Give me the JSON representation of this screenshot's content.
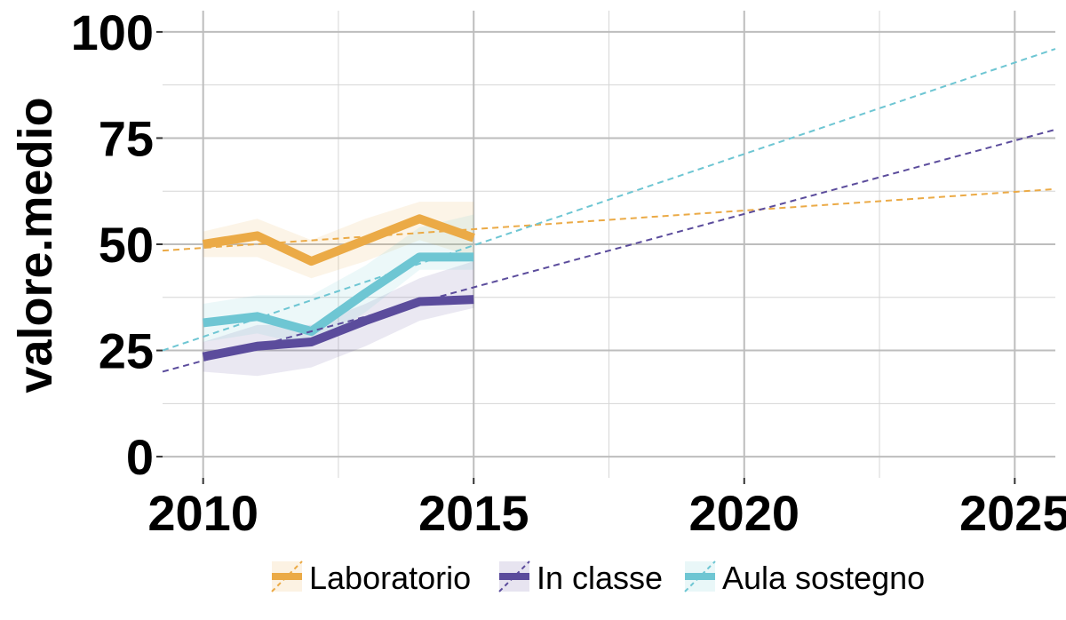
{
  "chart_data": {
    "type": "line",
    "title": "",
    "xlabel": "",
    "ylabel": "valore.medio",
    "xlim": [
      2009.25,
      2025.75
    ],
    "ylim": [
      -5,
      105
    ],
    "x_ticks": [
      2010,
      2015,
      2020,
      2025
    ],
    "y_ticks": [
      0,
      25,
      50,
      75,
      100
    ],
    "grid": true,
    "legend_position": "bottom",
    "x": [
      2010,
      2011,
      2012,
      2013,
      2014,
      2015
    ],
    "series": [
      {
        "name": "Laboratorio",
        "color": "#EBAA46",
        "values": [
          50,
          52,
          46,
          51,
          56,
          51.5
        ],
        "ribbon_lower": [
          47,
          47,
          42,
          46,
          51,
          47
        ],
        "ribbon_upper": [
          53,
          56,
          51,
          56,
          60,
          60
        ],
        "trend": [
          [
            2009.25,
            48.5
          ],
          [
            2025.75,
            63
          ]
        ]
      },
      {
        "name": "In classe",
        "color": "#5B4C9C",
        "values": [
          23.5,
          26,
          27,
          32,
          36.5,
          37
        ],
        "ribbon_lower": [
          20,
          19,
          21,
          26,
          32,
          35
        ],
        "ribbon_upper": [
          27,
          31,
          31,
          36,
          42,
          46
        ],
        "trend": [
          [
            2009.25,
            20
          ],
          [
            2025.75,
            77
          ]
        ]
      },
      {
        "name": "Aula sostegno",
        "color": "#6EC6D3",
        "values": [
          31.5,
          33,
          29.5,
          38.5,
          47,
          47
        ],
        "ribbon_lower": [
          27,
          29,
          26,
          34,
          44,
          44
        ],
        "ribbon_upper": [
          36,
          38,
          38,
          45,
          54,
          57
        ],
        "trend": [
          [
            2009.25,
            25
          ],
          [
            2025.75,
            96
          ]
        ]
      }
    ]
  }
}
